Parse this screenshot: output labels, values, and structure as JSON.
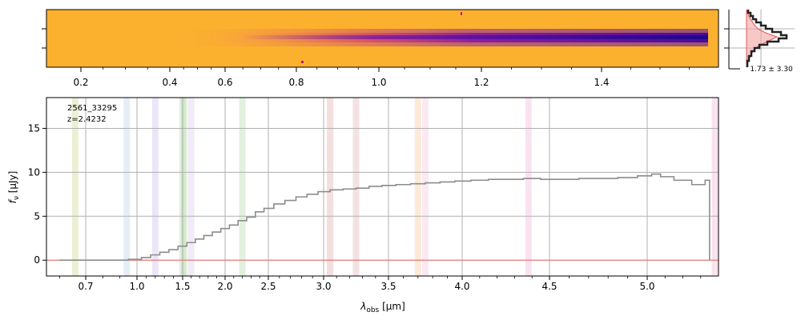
{
  "chart_data": [
    {
      "type": "heatmap",
      "description_label": "2D spectrum",
      "top_axis_ticks": [
        "0.2",
        "0.4",
        "0.6",
        "0.8",
        "1.0",
        "1.2",
        "1.4"
      ],
      "colormap": [
        "#fbb12e",
        "#f3793f",
        "#d0476c",
        "#9c2a96",
        "#6a0ea8",
        "#2d0594"
      ]
    },
    {
      "type": "histogram",
      "annotation": "1.73 ± 3.30"
    },
    {
      "type": "line",
      "label_id": "2561_33295",
      "label_z": "z=2.4232",
      "xlabel": "λ_obs [μm]",
      "xlabel_main": "λ",
      "xlabel_sub": "obs",
      "xlabel_unit": " [μm]",
      "ylabel": "f_ν [μJy]",
      "ylabel_main": "f",
      "ylabel_sub": "ν",
      "ylabel_unit": " [μJy]",
      "x_ticks": [
        "0.7",
        "1.0",
        "1.5",
        "2.0",
        "2.5",
        "3.0",
        "3.5",
        "4.0",
        "4.5",
        "5.0"
      ],
      "x_tick_values": [
        0.7,
        1.0,
        1.5,
        2.0,
        2.5,
        3.0,
        3.5,
        4.0,
        4.5,
        5.0
      ],
      "y_ticks": [
        "0",
        "5",
        "10",
        "15"
      ],
      "y_tick_values": [
        0,
        5,
        10,
        15
      ],
      "ylim": [
        -1.8,
        18.5
      ],
      "emission_bands": [
        {
          "x": 0.66,
          "color": "#c8d27a"
        },
        {
          "x": 0.94,
          "color": "#b5cfe8"
        },
        {
          "x": 1.2,
          "color": "#c9b5e8"
        },
        {
          "x": 1.5,
          "color": "#a6d2a0"
        },
        {
          "x": 1.52,
          "color": "#b5e0a0"
        },
        {
          "x": 1.6,
          "color": "#d6c3ee"
        },
        {
          "x": 2.2,
          "color": "#a8d8a0"
        },
        {
          "x": 3.05,
          "color": "#e0a0a0"
        },
        {
          "x": 3.25,
          "color": "#e0a8a8"
        },
        {
          "x": 3.7,
          "color": "#f5c090"
        },
        {
          "x": 3.75,
          "color": "#f0c0dc"
        },
        {
          "x": 4.38,
          "color": "#f0b0d8"
        },
        {
          "x": 5.38,
          "color": "#f0b0d0"
        }
      ],
      "series": [
        {
          "name": "flux",
          "color": "#8c8c8c",
          "x": [
            0.6,
            0.9,
            1.0,
            1.1,
            1.2,
            1.3,
            1.4,
            1.5,
            1.6,
            1.7,
            1.8,
            1.9,
            2.0,
            2.1,
            2.2,
            2.3,
            2.4,
            2.5,
            2.6,
            2.7,
            2.8,
            2.9,
            3.0,
            3.1,
            3.2,
            3.3,
            3.4,
            3.5,
            3.6,
            3.7,
            3.8,
            3.9,
            4.0,
            4.1,
            4.2,
            4.3,
            4.4,
            4.5,
            4.6,
            4.7,
            4.8,
            4.9,
            5.0,
            5.05,
            5.1,
            5.2,
            5.3,
            5.35
          ],
          "y": [
            0.0,
            0.0,
            0.1,
            0.3,
            0.6,
            0.9,
            1.2,
            1.6,
            2.0,
            2.4,
            2.8,
            3.2,
            3.6,
            4.0,
            4.5,
            4.9,
            5.5,
            5.9,
            6.4,
            6.8,
            7.2,
            7.5,
            7.8,
            8.0,
            8.1,
            8.2,
            8.4,
            8.5,
            8.6,
            8.7,
            8.8,
            8.9,
            9.0,
            9.1,
            9.2,
            9.2,
            9.3,
            9.2,
            9.2,
            9.3,
            9.3,
            9.4,
            9.6,
            9.8,
            9.5,
            9.1,
            8.6,
            9.1
          ]
        }
      ],
      "model_line": {
        "color": "#e88080",
        "value": 0
      }
    }
  ]
}
